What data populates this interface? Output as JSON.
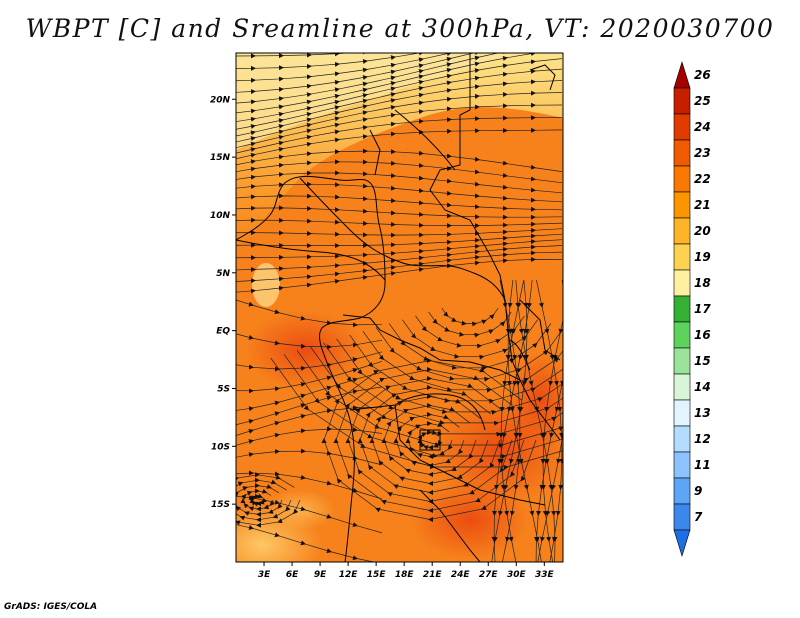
{
  "title": "WBPT [C] and Sreamline at 300hPa, VT: 2020030700",
  "footer": "GrADS: IGES/COLA",
  "map": {
    "type": "shaded-contour-with-streamlines",
    "variable": "WBPT [C]",
    "level": "300hPa",
    "valid_time": "2020030700",
    "lon_range": [
      0,
      35
    ],
    "lat_range": [
      -20,
      24
    ],
    "lon_ticks": [
      "3E",
      "6E",
      "9E",
      "12E",
      "15E",
      "18E",
      "21E",
      "24E",
      "27E",
      "30E",
      "33E"
    ],
    "lon_values": [
      3,
      6,
      9,
      12,
      15,
      18,
      21,
      24,
      27,
      30,
      33
    ],
    "lat_ticks": [
      "20N",
      "15N",
      "10N",
      "5N",
      "EQ",
      "5S",
      "10S",
      "15S"
    ],
    "lat_values": [
      20,
      15,
      10,
      5,
      0,
      -5,
      -10,
      -15
    ]
  },
  "colorbar": {
    "labels": [
      "26",
      "25",
      "24",
      "23",
      "22",
      "21",
      "20",
      "19",
      "18",
      "17",
      "16",
      "15",
      "14",
      "13",
      "12",
      "11",
      "9",
      "7"
    ],
    "colors": [
      "#a50000",
      "#c81e00",
      "#e13c00",
      "#f05a00",
      "#fa7800",
      "#fc9600",
      "#fdb428",
      "#fdd250",
      "#fff09f",
      "#34b034",
      "#5dd35d",
      "#9be39b",
      "#d8f5d8",
      "#e0f5ff",
      "#b4dcff",
      "#8cc3ff",
      "#5fa5f5",
      "#3c87eb",
      "#1e6ee6"
    ]
  }
}
